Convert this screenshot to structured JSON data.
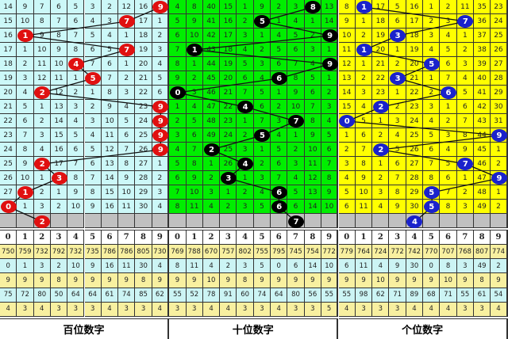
{
  "panels": [
    {
      "title": "百位数字",
      "cell_color": "#ccf8f8",
      "ball_color": "#e01010",
      "rows": [
        [
          "14",
          "9",
          "7",
          "6",
          "5",
          "3",
          "2",
          "12",
          "16",
          "9"
        ],
        [
          "15",
          "10",
          "8",
          "7",
          "6",
          "4",
          "3",
          "7",
          "17",
          "1"
        ],
        [
          "16",
          "1",
          "9",
          "8",
          "7",
          "5",
          "4",
          "1",
          "18",
          "2"
        ],
        [
          "17",
          "1",
          "10",
          "9",
          "8",
          "6",
          "5",
          "7",
          "19",
          "3"
        ],
        [
          "18",
          "2",
          "11",
          "10",
          "4",
          "7",
          "6",
          "1",
          "20",
          "4"
        ],
        [
          "19",
          "3",
          "12",
          "11",
          "1",
          "5",
          "7",
          "2",
          "21",
          "5"
        ],
        [
          "20",
          "4",
          "2",
          "12",
          "2",
          "1",
          "8",
          "3",
          "22",
          "6"
        ],
        [
          "21",
          "5",
          "1",
          "13",
          "3",
          "2",
          "9",
          "4",
          "23",
          "9"
        ],
        [
          "22",
          "6",
          "2",
          "14",
          "4",
          "3",
          "10",
          "5",
          "24",
          "9"
        ],
        [
          "23",
          "7",
          "3",
          "15",
          "5",
          "4",
          "11",
          "6",
          "25",
          "9"
        ],
        [
          "24",
          "8",
          "4",
          "16",
          "6",
          "5",
          "12",
          "7",
          "26",
          "9"
        ],
        [
          "25",
          "9",
          "2",
          "17",
          "7",
          "6",
          "13",
          "8",
          "27",
          "1"
        ],
        [
          "26",
          "10",
          "1",
          "3",
          "8",
          "7",
          "14",
          "9",
          "28",
          "2"
        ],
        [
          "27",
          "1",
          "2",
          "1",
          "9",
          "8",
          "15",
          "10",
          "29",
          "3"
        ],
        [
          "0",
          "1",
          "3",
          "2",
          "10",
          "9",
          "16",
          "11",
          "30",
          "4"
        ]
      ],
      "hits": [
        9,
        7,
        1,
        7,
        4,
        5,
        2,
        9,
        9,
        9,
        9,
        2,
        3,
        1,
        0
      ],
      "prediction": 2,
      "digits": [
        "0",
        "1",
        "2",
        "3",
        "4",
        "5",
        "6",
        "7",
        "8",
        "9"
      ],
      "stats": [
        [
          "750",
          "759",
          "732",
          "792",
          "732",
          "735",
          "786",
          "786",
          "805",
          "730"
        ],
        [
          "0",
          "1",
          "3",
          "2",
          "10",
          "9",
          "16",
          "11",
          "30",
          "4"
        ],
        [
          "9",
          "9",
          "9",
          "8",
          "9",
          "9",
          "9",
          "9",
          "8",
          "9"
        ],
        [
          "75",
          "72",
          "80",
          "50",
          "64",
          "64",
          "61",
          "74",
          "85",
          "62"
        ],
        [
          "4",
          "3",
          "4",
          "3",
          "3",
          "3",
          "4",
          "3",
          "3",
          "4"
        ]
      ]
    },
    {
      "title": "十位数字",
      "cell_color": "#00ee00",
      "ball_color": "#000000",
      "rows": [
        [
          "4",
          "8",
          "40",
          "15",
          "1",
          "9",
          "2",
          "3",
          "8",
          "13"
        ],
        [
          "5",
          "9",
          "41",
          "16",
          "2",
          "5",
          "1",
          "4",
          "1",
          "14"
        ],
        [
          "6",
          "10",
          "42",
          "17",
          "3",
          "1",
          "4",
          "5",
          "2",
          "9"
        ],
        [
          "7",
          "1",
          "43",
          "18",
          "4",
          "2",
          "5",
          "6",
          "3",
          "1"
        ],
        [
          "8",
          "1",
          "44",
          "19",
          "5",
          "3",
          "6",
          "7",
          "4",
          "9"
        ],
        [
          "9",
          "2",
          "45",
          "20",
          "6",
          "4",
          "6",
          "8",
          "5",
          "1"
        ],
        [
          "0",
          "3",
          "46",
          "21",
          "7",
          "5",
          "1",
          "9",
          "6",
          "2"
        ],
        [
          "1",
          "4",
          "47",
          "22",
          "4",
          "6",
          "2",
          "10",
          "7",
          "3"
        ],
        [
          "2",
          "5",
          "48",
          "23",
          "1",
          "7",
          "3",
          "7",
          "8",
          "4"
        ],
        [
          "3",
          "6",
          "49",
          "24",
          "2",
          "5",
          "4",
          "1",
          "9",
          "5"
        ],
        [
          "4",
          "7",
          "2",
          "25",
          "3",
          "1",
          "5",
          "2",
          "10",
          "6"
        ],
        [
          "5",
          "8",
          "1",
          "26",
          "4",
          "2",
          "6",
          "3",
          "11",
          "7"
        ],
        [
          "6",
          "9",
          "2",
          "3",
          "1",
          "3",
          "7",
          "4",
          "12",
          "8"
        ],
        [
          "7",
          "10",
          "3",
          "1",
          "2",
          "4",
          "6",
          "5",
          "13",
          "9"
        ],
        [
          "8",
          "11",
          "4",
          "2",
          "3",
          "5",
          "6",
          "6",
          "14",
          "10"
        ]
      ],
      "hits": [
        8,
        5,
        9,
        1,
        9,
        6,
        0,
        4,
        7,
        5,
        2,
        4,
        3,
        6,
        6
      ],
      "prediction": 7,
      "digits": [
        "0",
        "1",
        "2",
        "3",
        "4",
        "5",
        "6",
        "7",
        "8",
        "9"
      ],
      "stats": [
        [
          "769",
          "788",
          "670",
          "757",
          "802",
          "755",
          "795",
          "745",
          "754",
          "772"
        ],
        [
          "8",
          "11",
          "4",
          "2",
          "3",
          "5",
          "0",
          "6",
          "14",
          "10"
        ],
        [
          "9",
          "9",
          "10",
          "9",
          "8",
          "9",
          "9",
          "9",
          "9",
          "9"
        ],
        [
          "55",
          "52",
          "78",
          "91",
          "60",
          "74",
          "64",
          "80",
          "56",
          "55"
        ],
        [
          "3",
          "3",
          "4",
          "4",
          "3",
          "3",
          "4",
          "3",
          "3",
          "5"
        ]
      ]
    },
    {
      "title": "个位数字",
      "cell_color": "#ffff00",
      "ball_color": "#1a22cc",
      "rows": [
        [
          "8",
          "1",
          "17",
          "5",
          "16",
          "1",
          "2",
          "11",
          "35",
          "23"
        ],
        [
          "9",
          "1",
          "18",
          "6",
          "17",
          "2",
          "3",
          "7",
          "36",
          "24"
        ],
        [
          "10",
          "2",
          "19",
          "3",
          "18",
          "3",
          "4",
          "1",
          "37",
          "25"
        ],
        [
          "11",
          "1",
          "20",
          "1",
          "19",
          "4",
          "5",
          "2",
          "38",
          "26"
        ],
        [
          "12",
          "1",
          "21",
          "2",
          "20",
          "5",
          "6",
          "3",
          "39",
          "27"
        ],
        [
          "13",
          "2",
          "22",
          "3",
          "21",
          "1",
          "7",
          "4",
          "40",
          "28"
        ],
        [
          "14",
          "3",
          "23",
          "1",
          "22",
          "2",
          "6",
          "5",
          "41",
          "29"
        ],
        [
          "15",
          "4",
          "2",
          "2",
          "23",
          "3",
          "1",
          "6",
          "42",
          "30"
        ],
        [
          "0",
          "5",
          "1",
          "3",
          "24",
          "4",
          "2",
          "7",
          "43",
          "31"
        ],
        [
          "1",
          "6",
          "2",
          "4",
          "25",
          "5",
          "3",
          "8",
          "44",
          "9"
        ],
        [
          "2",
          "7",
          "2",
          "5",
          "26",
          "6",
          "4",
          "9",
          "45",
          "1"
        ],
        [
          "3",
          "8",
          "1",
          "6",
          "27",
          "7",
          "5",
          "7",
          "46",
          "2"
        ],
        [
          "4",
          "9",
          "2",
          "7",
          "28",
          "8",
          "6",
          "1",
          "47",
          "9"
        ],
        [
          "5",
          "10",
          "3",
          "8",
          "29",
          "5",
          "7",
          "2",
          "48",
          "1"
        ],
        [
          "6",
          "11",
          "4",
          "9",
          "30",
          "5",
          "8",
          "3",
          "49",
          "2"
        ]
      ],
      "hits": [
        1,
        7,
        3,
        1,
        5,
        3,
        6,
        2,
        0,
        9,
        2,
        7,
        9,
        5,
        5
      ],
      "prediction": 4,
      "digits": [
        "0",
        "1",
        "2",
        "3",
        "4",
        "5",
        "6",
        "7",
        "8",
        "9"
      ],
      "stats": [
        [
          "779",
          "764",
          "724",
          "772",
          "742",
          "770",
          "707",
          "768",
          "807",
          "774"
        ],
        [
          "6",
          "11",
          "4",
          "9",
          "30",
          "0",
          "8",
          "3",
          "49",
          "2"
        ],
        [
          "9",
          "9",
          "10",
          "9",
          "9",
          "9",
          "10",
          "9",
          "8",
          "9"
        ],
        [
          "55",
          "98",
          "62",
          "71",
          "89",
          "68",
          "71",
          "55",
          "61",
          "54"
        ],
        [
          "4",
          "3",
          "3",
          "3",
          "4",
          "4",
          "4",
          "3",
          "3",
          "4"
        ]
      ]
    }
  ],
  "stat_colors": [
    "#f8f0a0",
    "#ccf4f4",
    "#f8f0a0",
    "#ccf4f4",
    "#f8f0a0"
  ],
  "prediction_row_color": "#c0c0c0"
}
